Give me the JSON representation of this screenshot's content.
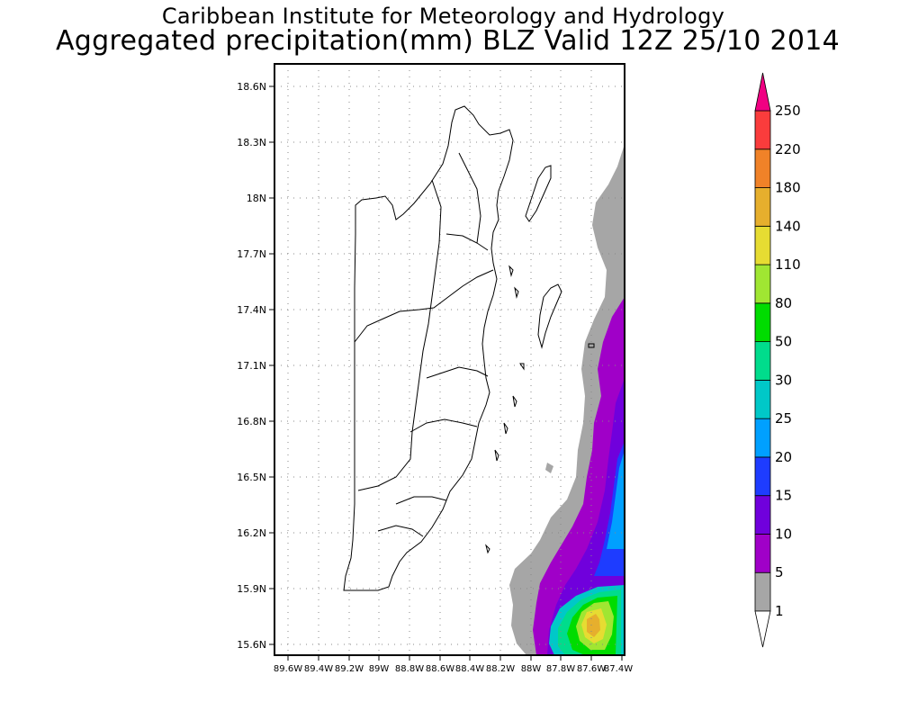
{
  "title": "Caribbean Institute for Meteorology and Hydrology",
  "subtitle": "Aggregated precipitation(mm) BLZ Valid 12Z 25/10 2014",
  "lat_labels": [
    "18.6N",
    "18.3N",
    "18N",
    "17.7N",
    "17.4N",
    "17.1N",
    "16.8N",
    "16.5N",
    "16.2N",
    "15.9N",
    "15.6N"
  ],
  "lon_labels": [
    "89.6W",
    "89.4W",
    "89.2W",
    "89W",
    "88.8W",
    "88.6W",
    "88.4W",
    "88.2W",
    "88W",
    "87.8W",
    "87.6W",
    "87.4W"
  ],
  "colorbar": {
    "levels": [
      "1",
      "5",
      "10",
      "15",
      "20",
      "25",
      "30",
      "50",
      "80",
      "110",
      "140",
      "180",
      "220",
      "250"
    ],
    "colors": [
      "#a6a6a6",
      "#a000c8",
      "#7000dc",
      "#1e3cff",
      "#00a0ff",
      "#00c8c8",
      "#00dc8c",
      "#00dc00",
      "#a0e632",
      "#e6dc32",
      "#e6af2d",
      "#f08228",
      "#fa3c3c",
      "#f00082"
    ],
    "below_color": "#ffffff"
  }
}
